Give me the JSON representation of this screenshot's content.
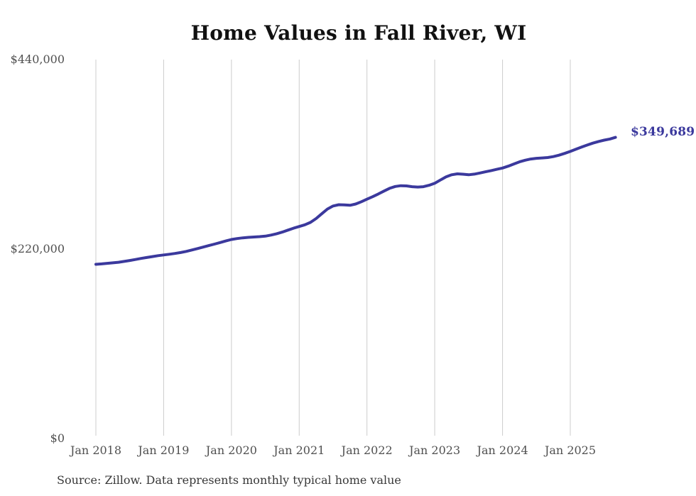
{
  "chart_data": {
    "type": "line",
    "title": "Home Values in Fall River, WI",
    "end_label": "$349,689",
    "final_value": 349689,
    "source_note": "Source: Zillow. Data represents monthly typical home value",
    "x_start": "2018-01",
    "x_end": "2025-09",
    "frequency": "monthly",
    "x_tick_labels": [
      "Jan 2018",
      "Jan 2019",
      "Jan 2020",
      "Jan 2021",
      "Jan 2022",
      "Jan 2023",
      "Jan 2024",
      "Jan 2025"
    ],
    "x_tick_month_index": [
      0,
      12,
      24,
      36,
      48,
      60,
      72,
      84
    ],
    "y_tick_labels": [
      "$440,000",
      "$220,000",
      "$0"
    ],
    "y_tick_values": [
      440000,
      220000,
      0
    ],
    "ylim": [
      0,
      440000
    ],
    "grid": "vertical-only",
    "legend": "none",
    "line_color": "#3b399d",
    "grid_color": "#cccccc",
    "series": [
      {
        "name": "Typical home value",
        "values": [
          202300,
          202800,
          203400,
          204000,
          204700,
          205700,
          206700,
          207900,
          209100,
          210200,
          211300,
          212300,
          213200,
          214000,
          214900,
          216000,
          217300,
          218900,
          220600,
          222300,
          224000,
          225800,
          227600,
          229400,
          231100,
          232200,
          233000,
          233600,
          234000,
          234400,
          235000,
          236200,
          237800,
          239700,
          242000,
          244200,
          246200,
          248200,
          251000,
          255400,
          261000,
          266500,
          270000,
          271500,
          271300,
          270800,
          272300,
          275000,
          277900,
          280800,
          283900,
          287300,
          290500,
          292700,
          293600,
          293300,
          292400,
          292000,
          292400,
          294100,
          296400,
          300200,
          303800,
          306300,
          307300,
          306900,
          306300,
          307000,
          308300,
          309700,
          311100,
          312600,
          314100,
          316200,
          318800,
          321300,
          323200,
          324600,
          325400,
          325800,
          326300,
          327400,
          329000,
          331100,
          333400,
          335900,
          338400,
          340800,
          343000,
          344900,
          346500,
          347800,
          349689
        ]
      }
    ]
  }
}
